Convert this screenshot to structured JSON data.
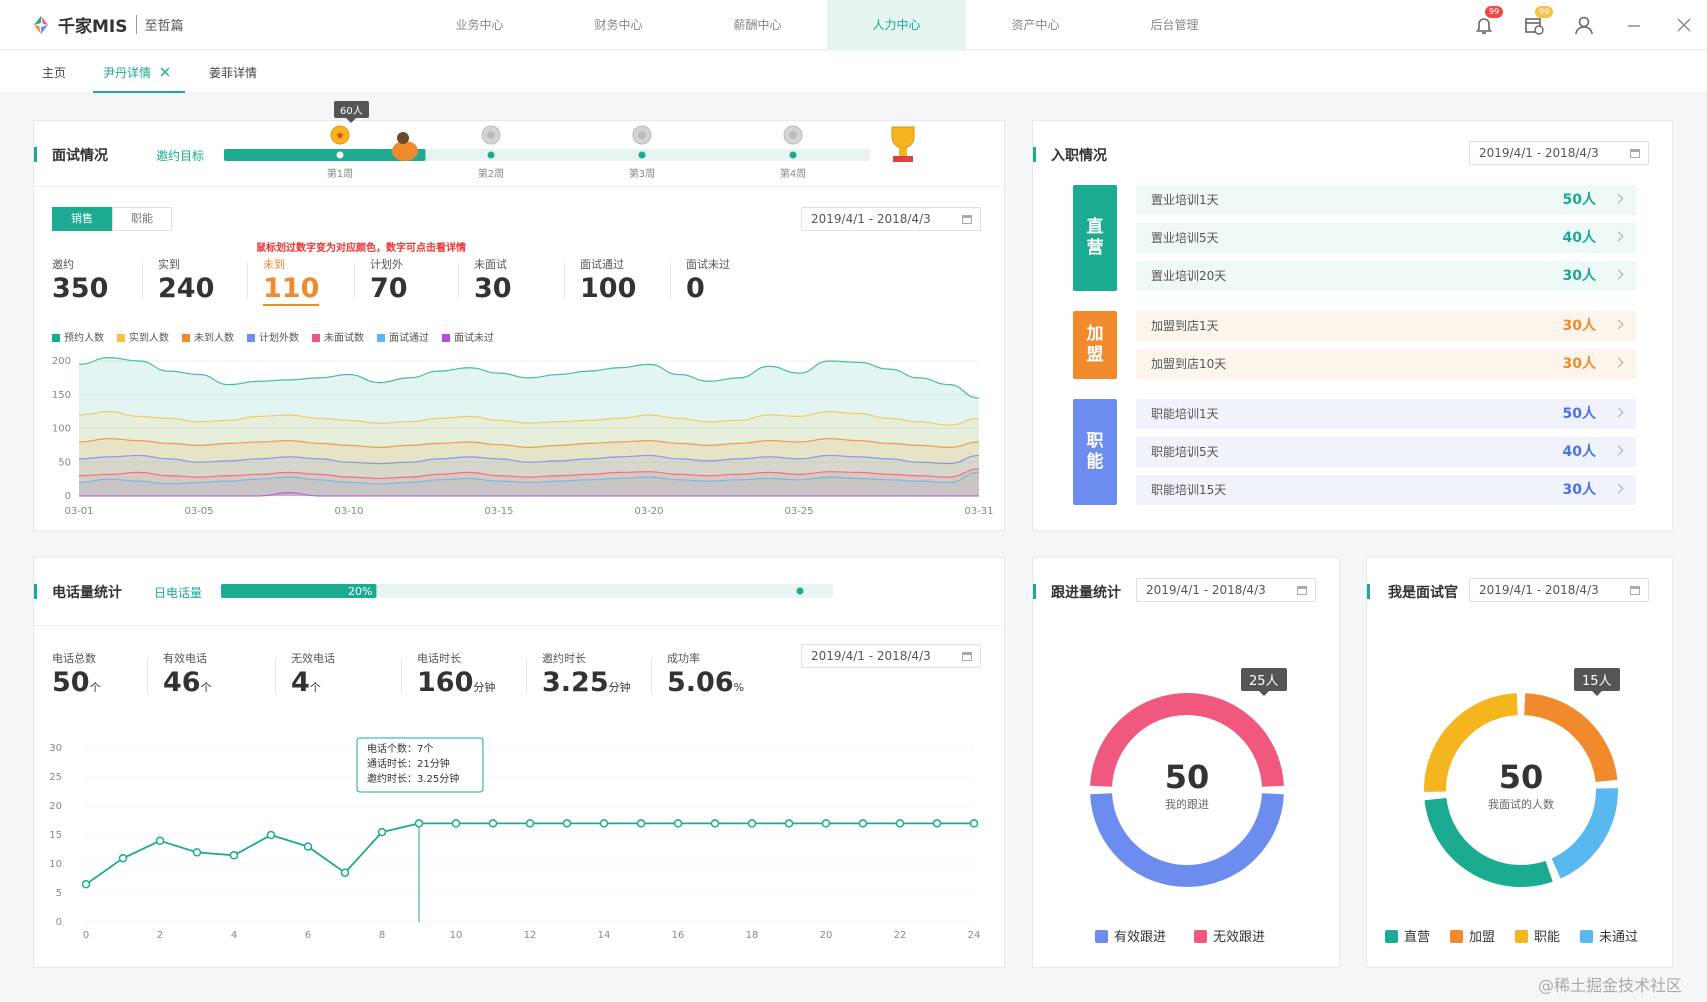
{
  "app": {
    "brand": "千家MIS",
    "edition": "至哲篇"
  },
  "nav": {
    "items": [
      "业务中心",
      "财务中心",
      "薪酬中心",
      "人力中心",
      "资产中心",
      "后台管理"
    ],
    "active_index": 3
  },
  "header_badges": {
    "notifications": "99",
    "calendar": "99"
  },
  "tabs": [
    "主页",
    "尹丹详情",
    "姜菲详情"
  ],
  "interview": {
    "title": "面试情况",
    "goal_label": "邀约目标",
    "progress": 0.25,
    "progress_badge": "60人",
    "weeks": [
      "第1周",
      "第2周",
      "第3周",
      "第4周"
    ],
    "segments": [
      "销售",
      "职能"
    ],
    "date_range": "2019/4/1 - 2018/4/3",
    "hint": "鼠标划过数字变为对应颜色，数字可点击看详情",
    "stats": [
      {
        "label": "邀约",
        "value": "350"
      },
      {
        "label": "实到",
        "value": "240"
      },
      {
        "label": "未到",
        "value": "110"
      },
      {
        "label": "计划外",
        "value": "70"
      },
      {
        "label": "未面试",
        "value": "30"
      },
      {
        "label": "面试通过",
        "value": "100"
      },
      {
        "label": "面试未过",
        "value": "0"
      }
    ],
    "active_stat_index": 2,
    "active_stat_color": "#f08a2c"
  },
  "chart_data": [
    {
      "type": "area",
      "categories": [
        "03-01",
        "03-02",
        "03-03",
        "03-04",
        "03-05",
        "03-06",
        "03-07",
        "03-08",
        "03-09",
        "03-10",
        "03-11",
        "03-12",
        "03-13",
        "03-14",
        "03-15",
        "03-16",
        "03-17",
        "03-18",
        "03-19",
        "03-20",
        "03-21",
        "03-22",
        "03-23",
        "03-24",
        "03-25",
        "03-26",
        "03-27",
        "03-28",
        "03-29",
        "03-30",
        "03-31"
      ],
      "x_tick_labels": [
        "03-01",
        "03-05",
        "03-10",
        "03-15",
        "03-20",
        "03-25",
        "03-31"
      ],
      "y_ticks": [
        0,
        50,
        100,
        150,
        200
      ],
      "ylim": [
        0,
        200
      ],
      "series": [
        {
          "name": "预约人数",
          "color": "#1aab91",
          "values": [
            195,
            205,
            200,
            185,
            180,
            165,
            170,
            172,
            175,
            180,
            168,
            175,
            185,
            190,
            182,
            175,
            180,
            185,
            190,
            195,
            180,
            170,
            175,
            192,
            182,
            200,
            198,
            188,
            175,
            165,
            145
          ]
        },
        {
          "name": "实到人数",
          "color": "#f5c242",
          "values": [
            120,
            125,
            118,
            115,
            110,
            112,
            118,
            120,
            115,
            112,
            108,
            110,
            115,
            118,
            112,
            108,
            110,
            112,
            115,
            120,
            115,
            110,
            112,
            120,
            118,
            125,
            122,
            115,
            110,
            105,
            115
          ]
        },
        {
          "name": "未到人数",
          "color": "#f08a2c",
          "values": [
            80,
            85,
            82,
            78,
            75,
            78,
            80,
            82,
            78,
            75,
            72,
            75,
            78,
            80,
            76,
            72,
            75,
            78,
            80,
            82,
            78,
            75,
            78,
            82,
            80,
            85,
            82,
            78,
            75,
            72,
            80
          ]
        },
        {
          "name": "计划外数",
          "color": "#6d8cf0",
          "values": [
            55,
            58,
            60,
            55,
            50,
            52,
            55,
            58,
            55,
            50,
            48,
            50,
            55,
            58,
            55,
            50,
            52,
            55,
            58,
            60,
            55,
            52,
            55,
            58,
            55,
            60,
            58,
            55,
            50,
            48,
            60
          ]
        },
        {
          "name": "未面试数",
          "color": "#f0587e",
          "values": [
            30,
            32,
            35,
            30,
            28,
            30,
            32,
            35,
            32,
            28,
            26,
            28,
            32,
            35,
            30,
            28,
            30,
            32,
            35,
            36,
            32,
            30,
            32,
            35,
            32,
            36,
            35,
            32,
            30,
            28,
            40
          ]
        },
        {
          "name": "面试通过",
          "color": "#5ab8f0",
          "values": [
            20,
            25,
            22,
            18,
            20,
            22,
            25,
            28,
            24,
            20,
            18,
            20,
            24,
            26,
            22,
            20,
            22,
            24,
            26,
            28,
            24,
            22,
            24,
            26,
            24,
            28,
            26,
            24,
            22,
            20,
            35
          ]
        },
        {
          "name": "面试未过",
          "color": "#b84be0",
          "values": [
            0,
            0,
            0,
            0,
            0,
            0,
            0,
            5,
            0,
            0,
            0,
            0,
            0,
            0,
            0,
            0,
            0,
            0,
            0,
            0,
            0,
            0,
            0,
            0,
            0,
            0,
            0,
            0,
            0,
            0,
            0
          ]
        }
      ]
    },
    {
      "type": "line",
      "x": [
        0,
        1,
        2,
        3,
        4,
        5,
        6,
        7,
        8,
        9,
        10,
        11,
        12,
        13,
        14,
        15,
        16,
        17,
        18,
        19,
        20,
        21,
        22,
        23,
        24
      ],
      "x_tick_labels": [
        "0",
        "2",
        "4",
        "6",
        "8",
        "10",
        "12",
        "14",
        "16",
        "18",
        "20",
        "22",
        "24"
      ],
      "y_ticks": [
        0,
        5,
        10,
        15,
        20,
        25,
        30
      ],
      "ylim": [
        0,
        30
      ],
      "series": [
        {
          "color": "#1aab91",
          "values": [
            6.5,
            11,
            14,
            12,
            11.5,
            15,
            13,
            8.5,
            15.5,
            17,
            17,
            17,
            17,
            17,
            17,
            17,
            17,
            17,
            17,
            17,
            17,
            17,
            17,
            17,
            17
          ]
        }
      ],
      "tooltip_index": 9,
      "tooltip": [
        "电话个数：7个",
        "通话时长：21分钟",
        "邀约时长：3.25分钟"
      ]
    },
    {
      "type": "pie",
      "categories": [
        "有效跟进",
        "无效跟进"
      ],
      "values": [
        25,
        25
      ],
      "colors": [
        "#6d8cf0",
        "#f0587e"
      ],
      "center_value": "50",
      "center_label": "我的跟进",
      "badge": "25人"
    },
    {
      "type": "pie",
      "categories": [
        "直营",
        "加盟",
        "职能",
        "未通过"
      ],
      "values": [
        15,
        12,
        13,
        10
      ],
      "colors": [
        "#1aab91",
        "#f08a2c",
        "#f5b51f",
        "#5ab8f0"
      ],
      "center_value": "50",
      "center_label": "我面试的人数",
      "badge": "15人"
    }
  ],
  "onboarding": {
    "title": "入职情况",
    "date_range": "2019/4/1 - 2018/4/3",
    "groups": [
      {
        "label": "直营",
        "color": "#1aab91",
        "row_bg": "#eef8f6",
        "num_color": "#1aab91",
        "rows": [
          {
            "label": "置业培训1天",
            "value": "50人"
          },
          {
            "label": "置业培训5天",
            "value": "40人"
          },
          {
            "label": "置业培训20天",
            "value": "30人"
          }
        ]
      },
      {
        "label": "加盟",
        "color": "#f08a2c",
        "row_bg": "#fdf4ec",
        "num_color": "#f08a2c",
        "rows": [
          {
            "label": "加盟到店1天",
            "value": "30人"
          },
          {
            "label": "加盟到店10天",
            "value": "30人"
          }
        ]
      },
      {
        "label": "职能",
        "color": "#6d8cf0",
        "row_bg": "#f0f3fc",
        "num_color": "#4a73e8",
        "rows": [
          {
            "label": "职能培训1天",
            "value": "50人"
          },
          {
            "label": "职能培训5天",
            "value": "40人"
          },
          {
            "label": "职能培训15天",
            "value": "30人"
          }
        ]
      }
    ]
  },
  "calls": {
    "title": "电话量统计",
    "goal_label": "日电话量",
    "progress": 0.2,
    "progress_text": "20%",
    "date_range": "2019/4/1 - 2018/4/3",
    "stats": [
      {
        "label": "电话总数",
        "value": "50",
        "unit": "个"
      },
      {
        "label": "有效电话",
        "value": "46",
        "unit": "个"
      },
      {
        "label": "无效电话",
        "value": "4",
        "unit": "个"
      },
      {
        "label": "电话时长",
        "value": "160",
        "unit": "分钟"
      },
      {
        "label": "邀约时长",
        "value": "3.25",
        "unit": "分钟"
      },
      {
        "label": "成功率",
        "value": "5.06",
        "unit": "%"
      }
    ]
  },
  "followup": {
    "title": "跟进量统计",
    "date_range": "2019/4/1 - 2018/4/3"
  },
  "interviewer": {
    "title": "我是面试官",
    "date_range": "2019/4/1 - 2018/4/3"
  },
  "watermark": "@稀土掘金技术社区"
}
